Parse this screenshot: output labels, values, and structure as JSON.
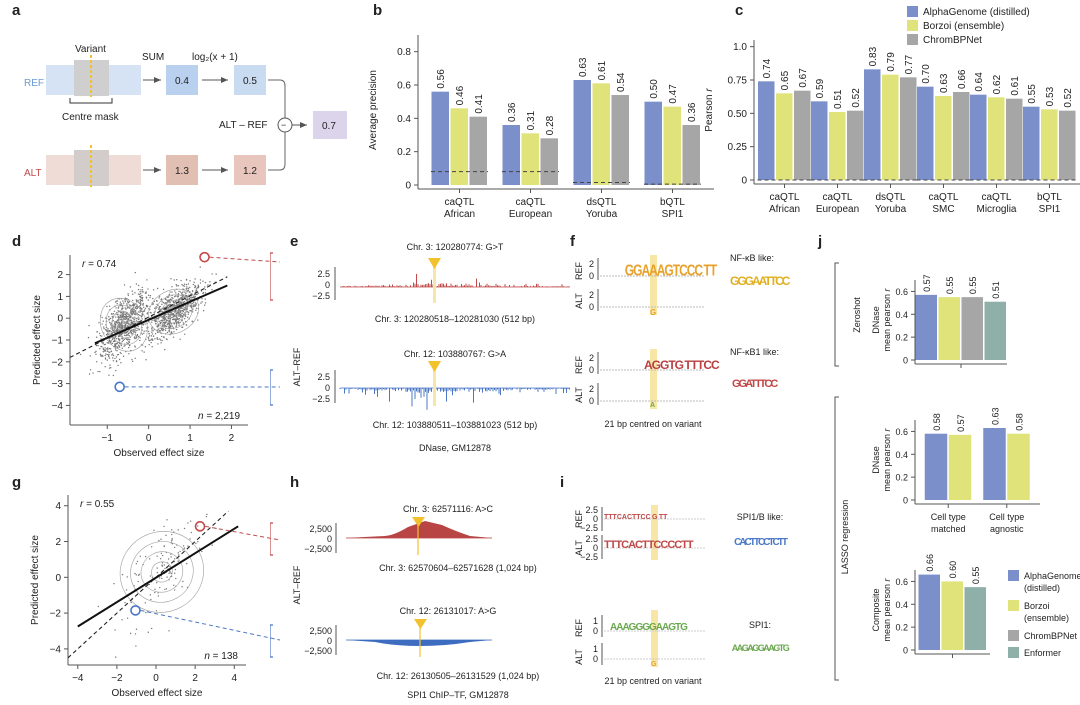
{
  "colors": {
    "alphagenome": "#7b8fca",
    "borzoi": "#e0e27a",
    "chrombpnet": "#a6a6a6",
    "enformer": "#8fb0a8",
    "ref_blue": "#6b9ad6",
    "alt_red": "#c24a4a",
    "variant_yellow": "#f2c12e",
    "ref_box": "#c9dbf0",
    "alt_box": "#e8c5bd",
    "diff_box": "#dcd4ea"
  },
  "panel_labels": {
    "a": "a",
    "b": "b",
    "c": "c",
    "d": "d",
    "e": "e",
    "f": "f",
    "g": "g",
    "h": "h",
    "i": "i",
    "j": "j"
  },
  "panel_a": {
    "variant_label": "Variant",
    "sum_label": "SUM",
    "log_label": "log₂(x + 1)",
    "ref_label": "REF",
    "alt_label": "ALT",
    "centre_mask_label": "Centre mask",
    "ref_sum": "0.4",
    "ref_log": "0.5",
    "alt_sum": "1.3",
    "alt_log": "1.2",
    "diff_label": "ALT – REF",
    "minus_symbol": "−",
    "result": "0.7"
  },
  "chart_data": [
    {
      "id": "b",
      "type": "bar",
      "title": "",
      "ylabel": "Average precision",
      "xlabel": "",
      "ylim": [
        0,
        0.9
      ],
      "yticks": [
        "0",
        "0.2",
        "0.4",
        "0.6",
        "0.8"
      ],
      "ytick_values": [
        0,
        0.2,
        0.4,
        0.6,
        0.8
      ],
      "categories": [
        "caQTL\nAfrican",
        "caQTL\nEuropean",
        "dsQTL\nYoruba",
        "bQTL\nSPI1"
      ],
      "series": [
        {
          "name": "AlphaGenome (distilled)",
          "values": [
            0.56,
            0.36,
            0.63,
            0.5
          ],
          "labels": [
            "0.56",
            "0.36",
            "0.63",
            "0.50"
          ]
        },
        {
          "name": "Borzoi (ensemble)",
          "values": [
            0.46,
            0.31,
            0.61,
            0.47
          ],
          "labels": [
            "0.46",
            "0.31",
            "0.61",
            "0.47"
          ]
        },
        {
          "name": "ChromBPNet",
          "values": [
            0.41,
            0.28,
            0.54,
            0.36
          ],
          "labels": [
            "0.41",
            "0.28",
            "0.54",
            "0.36"
          ]
        }
      ],
      "baseline": [
        0.08,
        0.08,
        0.015,
        0.005
      ]
    },
    {
      "id": "c",
      "type": "bar",
      "title": "",
      "ylabel": "Pearson r",
      "xlabel": "",
      "ylim": [
        0,
        1.05
      ],
      "yticks": [
        "0",
        "0.25",
        "0.50",
        "0.75",
        "1.0"
      ],
      "ytick_values": [
        0,
        0.25,
        0.5,
        0.75,
        1.0
      ],
      "categories": [
        "caQTL\nAfrican",
        "caQTL\nEuropean",
        "dsQTL\nYoruba",
        "caQTL\nSMC",
        "caQTL\nMicroglia",
        "bQTL\nSPI1"
      ],
      "series": [
        {
          "name": "AlphaGenome (distilled)",
          "values": [
            0.74,
            0.59,
            0.83,
            0.7,
            0.64,
            0.55
          ],
          "labels": [
            "0.74",
            "0.59",
            "0.83",
            "0.70",
            "0.64",
            "0.55"
          ]
        },
        {
          "name": "Borzoi (ensemble)",
          "values": [
            0.65,
            0.51,
            0.79,
            0.63,
            0.62,
            0.53
          ],
          "labels": [
            "0.65",
            "0.51",
            "0.79",
            "0.63",
            "0.62",
            "0.53"
          ]
        },
        {
          "name": "ChromBPNet",
          "values": [
            0.67,
            0.52,
            0.77,
            0.66,
            0.61,
            0.52
          ],
          "labels": [
            "0.67",
            "0.52",
            "0.77",
            "0.66",
            "0.61",
            "0.52"
          ]
        }
      ],
      "baseline": [
        0,
        0,
        0,
        0,
        0,
        0
      ],
      "legend": [
        "AlphaGenome (distilled)",
        "Borzoi (ensemble)",
        "ChromBPNet"
      ],
      "legend_position": "top-right"
    },
    {
      "id": "d",
      "type": "scatter",
      "xlabel": "Observed effect size",
      "ylabel": "Predicted effect size",
      "xlim": [
        -1.9,
        2.4
      ],
      "ylim": [
        -4.9,
        2.9
      ],
      "xticks": [
        -1,
        0,
        1,
        2
      ],
      "yticks": [
        -4,
        -3,
        -2,
        -1,
        0,
        1,
        2
      ],
      "r_label": "r = 0.74",
      "n_label": "n = 2,219",
      "fit_line": [
        [
          -1.3,
          -1.15
        ],
        [
          1.9,
          1.5
        ]
      ],
      "identity_line": [
        [
          -1.9,
          -1.8
        ],
        [
          1.9,
          1.9
        ]
      ],
      "highlight_points": [
        {
          "x": 1.35,
          "y": 2.8,
          "color": "red"
        },
        {
          "x": -0.7,
          "y": -3.15,
          "color": "blue"
        }
      ],
      "clusters": [
        {
          "cx": -0.6,
          "cy": -0.3,
          "sx": 0.3,
          "sy": 0.9
        },
        {
          "cx": 0.6,
          "cy": 0.3,
          "sx": 0.35,
          "sy": 0.7
        }
      ]
    },
    {
      "id": "g",
      "type": "scatter",
      "xlabel": "Observed effect size",
      "ylabel": "Predicted effect size",
      "xlim": [
        -4.5,
        4.6
      ],
      "ylim": [
        -4.9,
        4.6
      ],
      "xticks": [
        -4,
        -2,
        0,
        2,
        4
      ],
      "yticks": [
        -4,
        -2,
        0,
        2,
        4
      ],
      "r_label": "r = 0.55",
      "n_label": "n = 138",
      "fit_line": [
        [
          -4,
          -2.75
        ],
        [
          4.2,
          2.85
        ]
      ],
      "identity_line": [
        [
          -4.5,
          -4.5
        ],
        [
          3.7,
          3.7
        ]
      ],
      "highlight_points": [
        {
          "x": 2.25,
          "y": 2.85,
          "color": "red"
        },
        {
          "x": -1.05,
          "y": -1.85,
          "color": "blue"
        }
      ],
      "clusters": [
        {
          "cx": 0.3,
          "cy": 0.3,
          "sx": 1.2,
          "sy": 1.6
        }
      ]
    },
    {
      "id": "j_zeroshot",
      "type": "bar",
      "ylabel": "DNase\nmean pearson r",
      "ylim": [
        0,
        0.7
      ],
      "yticks": [
        "0",
        "0.2",
        "0.4",
        "0.6"
      ],
      "ytick_values": [
        0,
        0.2,
        0.4,
        0.6
      ],
      "categories": [
        ""
      ],
      "series": [
        {
          "name": "AlphaGenome (distilled)",
          "values": [
            0.57
          ],
          "labels": [
            "0.57"
          ]
        },
        {
          "name": "Borzoi (ensemble)",
          "values": [
            0.55
          ],
          "labels": [
            "0.55"
          ]
        },
        {
          "name": "ChromBPNet",
          "values": [
            0.55
          ],
          "labels": [
            "0.55"
          ]
        },
        {
          "name": "Enformer",
          "values": [
            0.51
          ],
          "labels": [
            "0.51"
          ]
        }
      ]
    },
    {
      "id": "j_lasso_dnase",
      "type": "bar",
      "ylabel": "DNase\nmean pearson r",
      "ylim": [
        0,
        0.7
      ],
      "yticks": [
        "0",
        "0.2",
        "0.4",
        "0.6"
      ],
      "ytick_values": [
        0,
        0.2,
        0.4,
        0.6
      ],
      "categories": [
        "Cell type\nmatched",
        "Cell type\nagnostic"
      ],
      "series": [
        {
          "name": "AlphaGenome (distilled)",
          "values": [
            0.58,
            0.63
          ],
          "labels": [
            "0.58",
            "0.63"
          ]
        },
        {
          "name": "Borzoi (ensemble)",
          "values": [
            0.57,
            0.58
          ],
          "labels": [
            "0.57",
            "0.58"
          ]
        }
      ]
    },
    {
      "id": "j_lasso_composite",
      "type": "bar",
      "ylabel": "Composite\nmean pearson r",
      "ylim": [
        0,
        0.7
      ],
      "yticks": [
        "0",
        "0.2",
        "0.4",
        "0.6"
      ],
      "ytick_values": [
        0,
        0.2,
        0.4,
        0.6
      ],
      "categories": [
        ""
      ],
      "series": [
        {
          "name": "AlphaGenome (distilled)",
          "values": [
            0.66
          ],
          "labels": [
            "0.66"
          ]
        },
        {
          "name": "Borzoi (ensemble)",
          "values": [
            0.6
          ],
          "labels": [
            "0.60"
          ]
        },
        {
          "name": "Enformer",
          "values": [
            0.55
          ],
          "labels": [
            "0.55"
          ]
        }
      ],
      "legend": [
        "AlphaGenome\n(distilled)",
        "Borzoi\n(ensemble)",
        "ChromBPNet",
        "Enformer"
      ]
    }
  ],
  "panel_e": {
    "ylabel": "ALT–REF",
    "yticks": [
      "2.5",
      "0",
      "−2.5"
    ],
    "top_variant": "Chr. 3: 120280774: G>T",
    "top_region": "Chr. 3: 120280518–120281030 (512 bp)",
    "bottom_variant": "Chr. 12: 103880767: G>A",
    "bottom_region": "Chr. 12: 103880511–103881023 (512 bp)",
    "caption": "DNase, GM12878"
  },
  "panel_f": {
    "rows": [
      "REF",
      "ALT",
      "REF",
      "ALT"
    ],
    "yticks": [
      "2",
      "0"
    ],
    "top_ref_seq": "  GGAAAGTCCC TT",
    "top_alt_seq": "G",
    "bottom_ref_seq": "AGGTG TTTCC",
    "bottom_alt_seq": "A",
    "motif_top_label": "NF-κB like:",
    "motif_top_seq": "GGGAATTCC",
    "motif_bottom_label": "NF-κB1 like:",
    "motif_bottom_seq": "GGATTTCC",
    "caption": "21 bp centred on variant"
  },
  "panel_h": {
    "ylabel": "ALT–REF",
    "yticks": [
      "2,500",
      "0",
      "−2,500"
    ],
    "top_variant": "Chr. 3: 62571116: A>C",
    "top_region": "Chr. 3: 62570604–62571628 (1,024 bp)",
    "bottom_variant": "Chr. 12: 26131017: A>G",
    "bottom_region": "Chr. 12: 26130505–26131529 (1,024 bp)",
    "caption": "SPI1 ChIP–TF, GM12878"
  },
  "panel_i": {
    "rows": [
      "REF",
      "ALT",
      "REF",
      "ALT"
    ],
    "top_yticks": [
      "2.5",
      "0",
      "−2.5"
    ],
    "bottom_yticks": [
      "1",
      "0"
    ],
    "top_ref_seq": "TTTCACTTCC G TT",
    "top_alt_seq": "TTTCACTTCCCCTT",
    "bottom_ref_seq": "AAAGGGGAAGTG",
    "bottom_alt_seq": "G",
    "motif_top_label": "SPI1/B like:",
    "motif_top_seq": "CACTTCCTCTT",
    "motif_bottom_label": "SPI1:",
    "motif_bottom_seq": "AAGAGGAAGTG",
    "caption": "21 bp centred on variant"
  },
  "panel_j": {
    "zeroshot_label": "Zeroshot",
    "lasso_label": "LASSO regression"
  }
}
